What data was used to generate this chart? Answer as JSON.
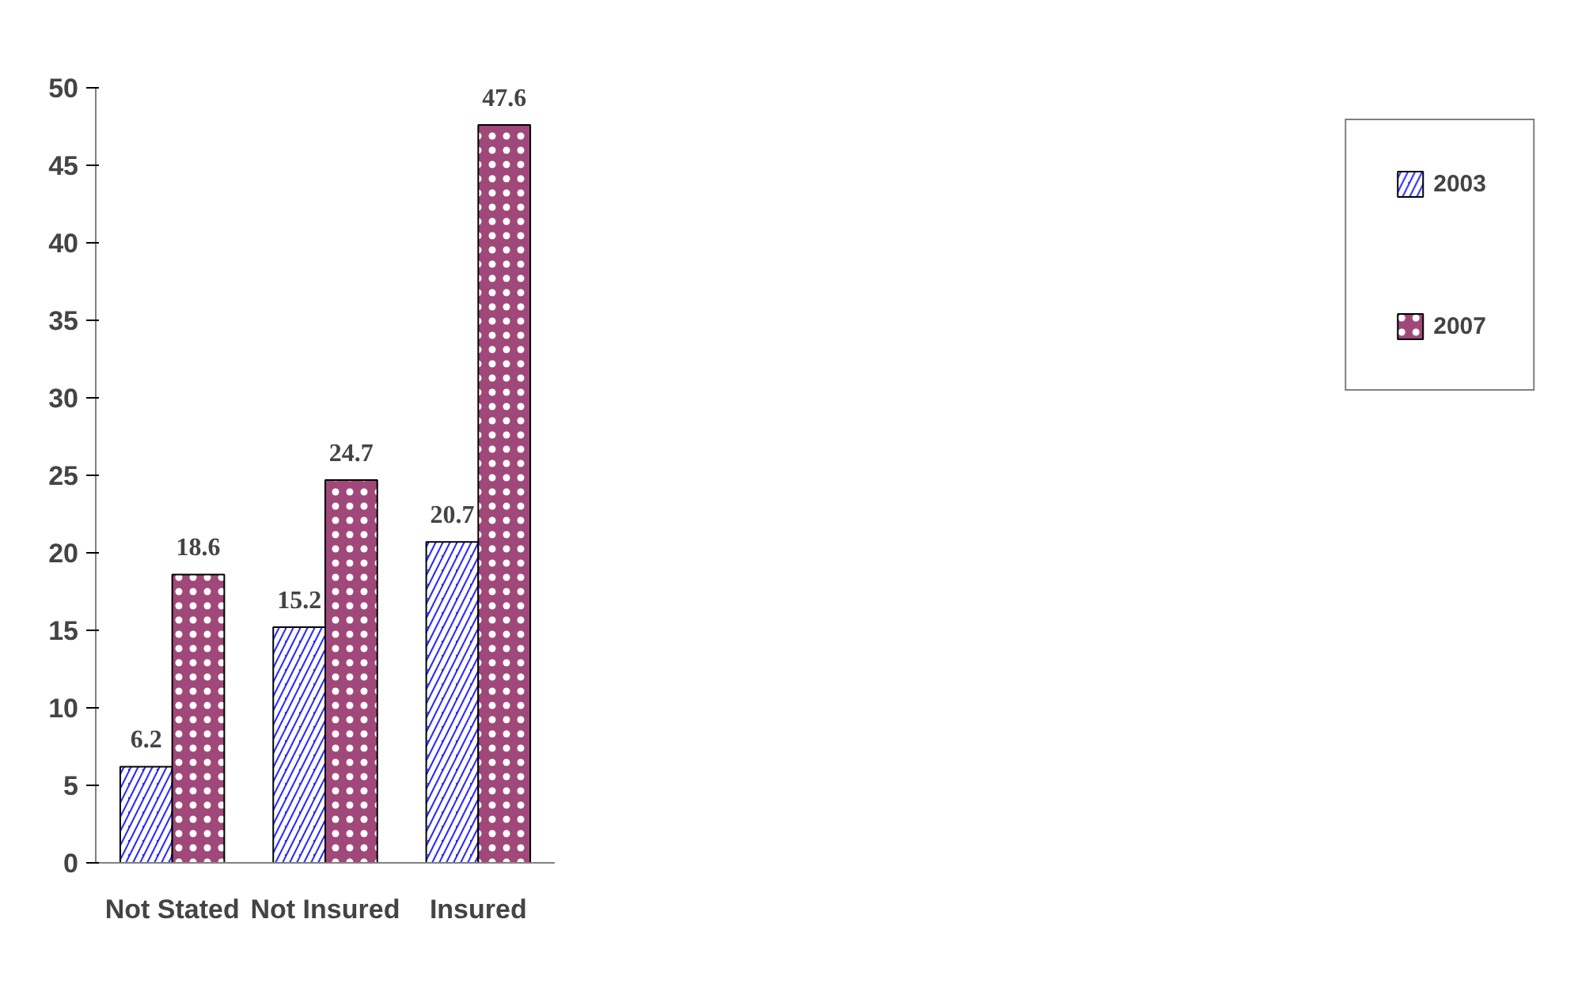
{
  "chart_data": {
    "type": "bar",
    "categories": [
      "Not Stated",
      "Not Insured",
      "Insured"
    ],
    "series": [
      {
        "name": "2003",
        "color": "#2b2bff",
        "values": [
          6.2,
          15.2,
          20.7
        ]
      },
      {
        "name": "2007",
        "color": "#a0487a",
        "values": [
          18.6,
          24.7,
          47.6
        ]
      }
    ],
    "ylim": [
      0,
      50
    ],
    "yticks": [
      0,
      5,
      10,
      15,
      20,
      25,
      30,
      35,
      40,
      45,
      50
    ],
    "data_labels": true,
    "legend": "right",
    "grid": false
  }
}
